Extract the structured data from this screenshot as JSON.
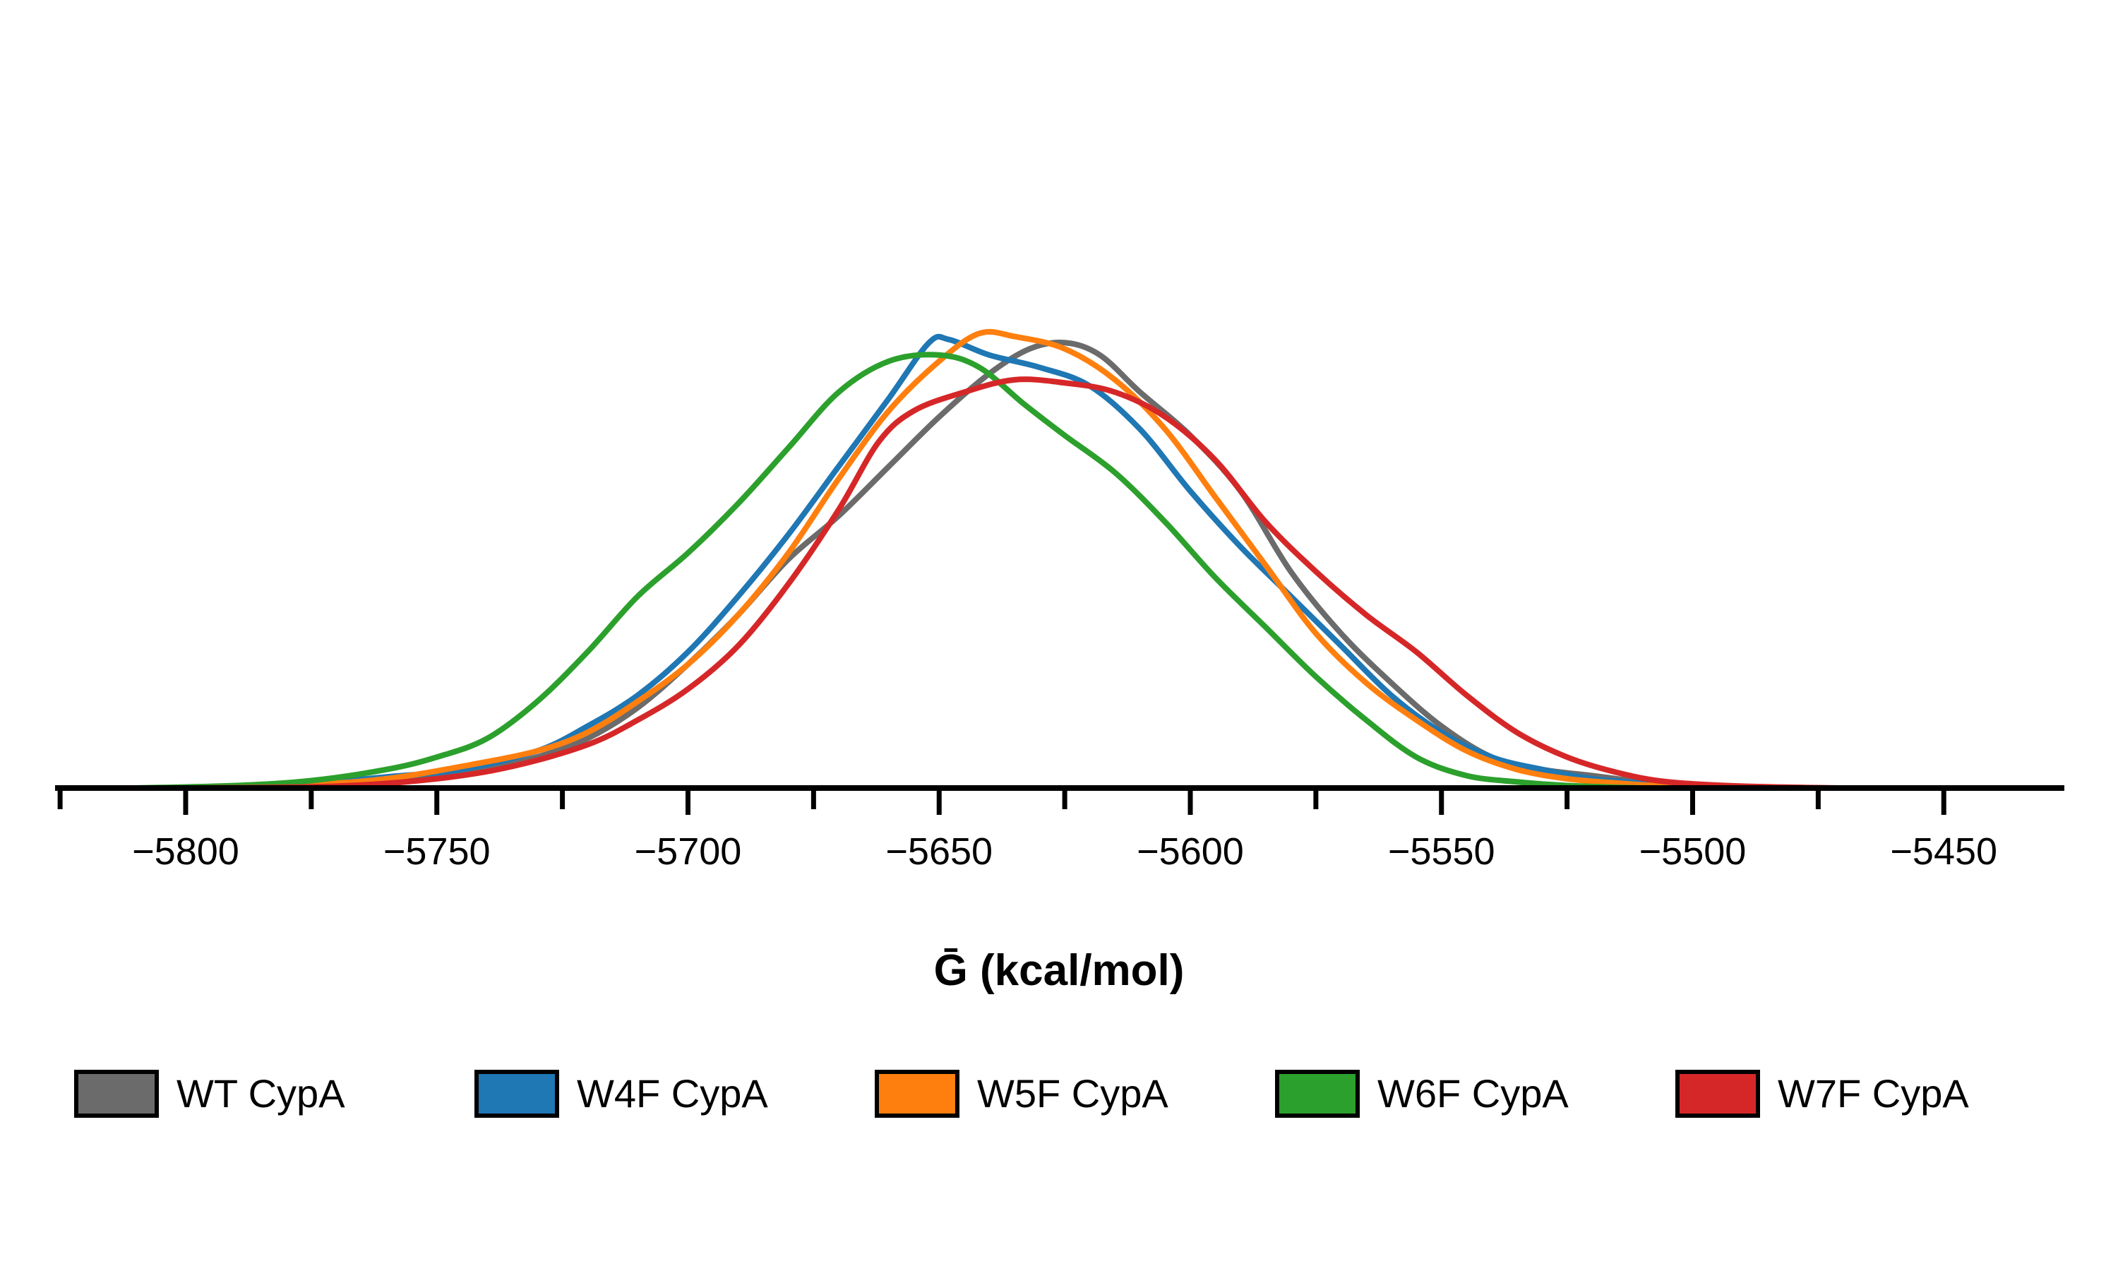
{
  "chart_data": {
    "type": "line",
    "title": "",
    "xlabel": "Ḡ (kcal/mol)",
    "ylabel": "",
    "xlim": [
      -5826,
      -5426
    ],
    "ylim": [
      0,
      1.0
    ],
    "grid": false,
    "legend_position": "bottom",
    "x_ticks": [
      -5800,
      -5750,
      -5700,
      -5650,
      -5600,
      -5550,
      -5500,
      -5450
    ],
    "x_tick_labels": [
      "−5800",
      "−5750",
      "−5700",
      "−5650",
      "−5600",
      "−5550",
      "−5500",
      "−5450"
    ],
    "series": [
      {
        "name": "WT CypA",
        "color": "#6b6b6b",
        "points": [
          [
            -5800,
            0.0
          ],
          [
            -5770,
            0.004
          ],
          [
            -5755,
            0.012
          ],
          [
            -5740,
            0.03
          ],
          [
            -5730,
            0.05
          ],
          [
            -5720,
            0.08
          ],
          [
            -5710,
            0.13
          ],
          [
            -5700,
            0.2
          ],
          [
            -5690,
            0.28
          ],
          [
            -5680,
            0.37
          ],
          [
            -5670,
            0.44
          ],
          [
            -5660,
            0.52
          ],
          [
            -5650,
            0.6
          ],
          [
            -5640,
            0.67
          ],
          [
            -5632,
            0.71
          ],
          [
            -5625,
            0.72
          ],
          [
            -5618,
            0.7
          ],
          [
            -5610,
            0.64
          ],
          [
            -5600,
            0.57
          ],
          [
            -5590,
            0.48
          ],
          [
            -5580,
            0.35
          ],
          [
            -5570,
            0.25
          ],
          [
            -5560,
            0.17
          ],
          [
            -5550,
            0.1
          ],
          [
            -5540,
            0.05
          ],
          [
            -5530,
            0.03
          ],
          [
            -5520,
            0.02
          ],
          [
            -5510,
            0.01
          ],
          [
            -5500,
            0.003
          ],
          [
            -5480,
            0.0
          ]
        ]
      },
      {
        "name": "W4F CypA",
        "color": "#1f77b4",
        "points": [
          [
            -5800,
            0.0
          ],
          [
            -5775,
            0.008
          ],
          [
            -5760,
            0.018
          ],
          [
            -5745,
            0.03
          ],
          [
            -5730,
            0.06
          ],
          [
            -5720,
            0.1
          ],
          [
            -5710,
            0.15
          ],
          [
            -5700,
            0.22
          ],
          [
            -5690,
            0.31
          ],
          [
            -5680,
            0.41
          ],
          [
            -5670,
            0.52
          ],
          [
            -5660,
            0.63
          ],
          [
            -5652,
            0.72
          ],
          [
            -5648,
            0.725
          ],
          [
            -5640,
            0.7
          ],
          [
            -5630,
            0.68
          ],
          [
            -5620,
            0.65
          ],
          [
            -5610,
            0.58
          ],
          [
            -5600,
            0.48
          ],
          [
            -5590,
            0.39
          ],
          [
            -5580,
            0.31
          ],
          [
            -5570,
            0.23
          ],
          [
            -5560,
            0.15
          ],
          [
            -5550,
            0.09
          ],
          [
            -5540,
            0.05
          ],
          [
            -5530,
            0.03
          ],
          [
            -5520,
            0.015
          ],
          [
            -5510,
            0.008
          ],
          [
            -5500,
            0.003
          ],
          [
            -5480,
            0.0
          ]
        ]
      },
      {
        "name": "W5F CypA",
        "color": "#ff7f0e",
        "points": [
          [
            -5800,
            0.0
          ],
          [
            -5775,
            0.006
          ],
          [
            -5760,
            0.015
          ],
          [
            -5745,
            0.035
          ],
          [
            -5730,
            0.06
          ],
          [
            -5720,
            0.09
          ],
          [
            -5710,
            0.14
          ],
          [
            -5700,
            0.2
          ],
          [
            -5690,
            0.28
          ],
          [
            -5680,
            0.38
          ],
          [
            -5670,
            0.5
          ],
          [
            -5660,
            0.61
          ],
          [
            -5650,
            0.69
          ],
          [
            -5642,
            0.735
          ],
          [
            -5635,
            0.73
          ],
          [
            -5625,
            0.71
          ],
          [
            -5615,
            0.66
          ],
          [
            -5605,
            0.58
          ],
          [
            -5595,
            0.47
          ],
          [
            -5585,
            0.36
          ],
          [
            -5575,
            0.25
          ],
          [
            -5565,
            0.17
          ],
          [
            -5555,
            0.11
          ],
          [
            -5545,
            0.06
          ],
          [
            -5535,
            0.03
          ],
          [
            -5525,
            0.015
          ],
          [
            -5515,
            0.008
          ],
          [
            -5505,
            0.003
          ],
          [
            -5490,
            0.0
          ]
        ]
      },
      {
        "name": "W6F CypA",
        "color": "#2ca02c",
        "points": [
          [
            -5810,
            0.0
          ],
          [
            -5790,
            0.004
          ],
          [
            -5775,
            0.012
          ],
          [
            -5760,
            0.03
          ],
          [
            -5750,
            0.05
          ],
          [
            -5740,
            0.08
          ],
          [
            -5730,
            0.14
          ],
          [
            -5720,
            0.22
          ],
          [
            -5710,
            0.31
          ],
          [
            -5700,
            0.38
          ],
          [
            -5690,
            0.46
          ],
          [
            -5680,
            0.55
          ],
          [
            -5670,
            0.64
          ],
          [
            -5660,
            0.69
          ],
          [
            -5650,
            0.7
          ],
          [
            -5642,
            0.68
          ],
          [
            -5633,
            0.62
          ],
          [
            -5625,
            0.57
          ],
          [
            -5615,
            0.51
          ],
          [
            -5605,
            0.43
          ],
          [
            -5595,
            0.34
          ],
          [
            -5585,
            0.26
          ],
          [
            -5575,
            0.18
          ],
          [
            -5565,
            0.11
          ],
          [
            -5555,
            0.05
          ],
          [
            -5545,
            0.02
          ],
          [
            -5535,
            0.01
          ],
          [
            -5525,
            0.004
          ],
          [
            -5510,
            0.0
          ]
        ]
      },
      {
        "name": "W7F CypA",
        "color": "#d62728",
        "points": [
          [
            -5800,
            0.0
          ],
          [
            -5770,
            0.003
          ],
          [
            -5750,
            0.015
          ],
          [
            -5735,
            0.035
          ],
          [
            -5720,
            0.07
          ],
          [
            -5710,
            0.11
          ],
          [
            -5700,
            0.16
          ],
          [
            -5690,
            0.23
          ],
          [
            -5680,
            0.33
          ],
          [
            -5670,
            0.45
          ],
          [
            -5662,
            0.56
          ],
          [
            -5655,
            0.61
          ],
          [
            -5645,
            0.64
          ],
          [
            -5635,
            0.66
          ],
          [
            -5625,
            0.655
          ],
          [
            -5615,
            0.64
          ],
          [
            -5605,
            0.6
          ],
          [
            -5595,
            0.53
          ],
          [
            -5585,
            0.43
          ],
          [
            -5575,
            0.35
          ],
          [
            -5565,
            0.28
          ],
          [
            -5555,
            0.22
          ],
          [
            -5545,
            0.15
          ],
          [
            -5535,
            0.09
          ],
          [
            -5525,
            0.05
          ],
          [
            -5515,
            0.025
          ],
          [
            -5505,
            0.01
          ],
          [
            -5490,
            0.003
          ],
          [
            -5470,
            0.0
          ]
        ]
      }
    ]
  }
}
